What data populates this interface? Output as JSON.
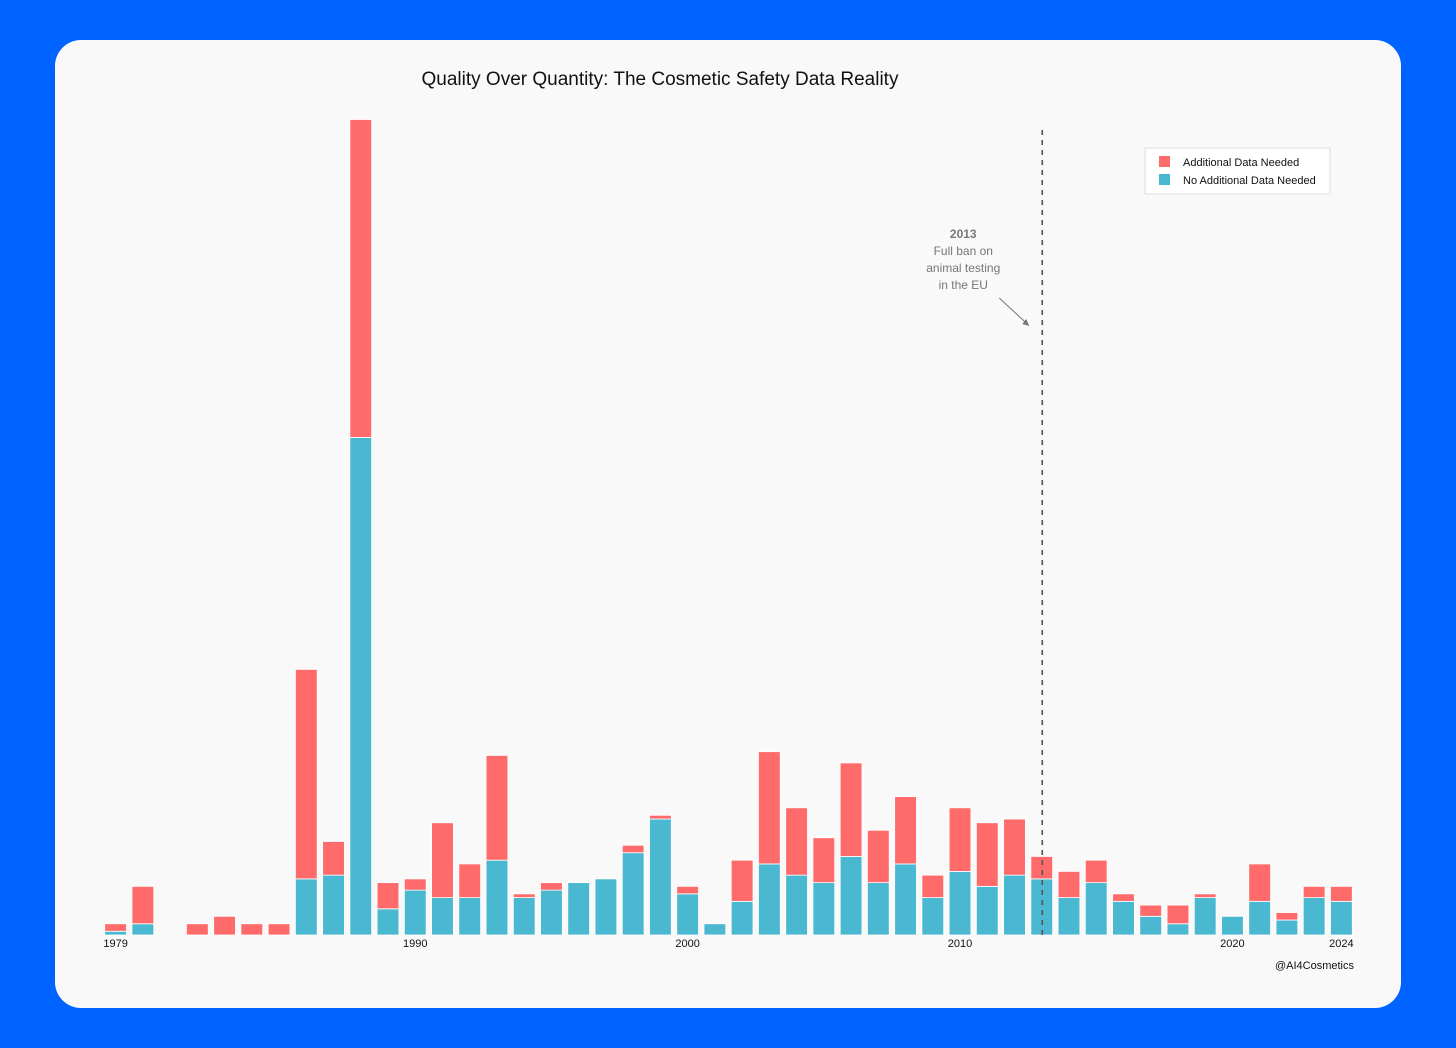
{
  "chart_data": {
    "type": "bar",
    "stacked": true,
    "title": "Quality Over Quantity: The Cosmetic Safety Data Reality",
    "xlabel": "",
    "ylabel": "",
    "ylim": [
      0,
      110
    ],
    "grid": false,
    "legend_position": "top-right",
    "x": [
      1979,
      1980,
      1981,
      1982,
      1983,
      1984,
      1985,
      1986,
      1987,
      1988,
      1989,
      1990,
      1991,
      1992,
      1993,
      1994,
      1995,
      1996,
      1997,
      1998,
      1999,
      2000,
      2001,
      2002,
      2003,
      2004,
      2005,
      2006,
      2007,
      2008,
      2009,
      2010,
      2011,
      2012,
      2013,
      2014,
      2015,
      2016,
      2017,
      2018,
      2019,
      2020,
      2021,
      2022,
      2023,
      2024
    ],
    "x_tick_labels": [
      "1979",
      "1990",
      "2000",
      "2010",
      "2020",
      "2024"
    ],
    "series": [
      {
        "name": "No Additional Data Needed",
        "color": "#4bb8d1",
        "values": [
          0.5,
          1.5,
          0,
          0,
          0,
          0,
          0,
          7.5,
          8,
          66.5,
          3.5,
          6,
          5,
          5,
          10,
          5,
          6,
          7,
          7.5,
          11,
          15.5,
          5.5,
          1.5,
          4.5,
          9.5,
          8,
          7,
          10.5,
          7,
          9.5,
          5,
          8.5,
          6.5,
          8,
          7.5,
          5,
          7,
          4.5,
          2.5,
          1.5,
          5,
          2.5,
          4.5,
          2,
          5,
          4.5
        ]
      },
      {
        "name": "Additional Data Needed",
        "color": "#ff6b6b",
        "values": [
          1,
          5,
          0,
          1.5,
          2.5,
          1.5,
          1.5,
          28,
          4.5,
          42.5,
          3.5,
          1.5,
          10,
          4.5,
          14,
          0.5,
          1,
          0,
          0,
          1,
          0.5,
          1,
          0,
          5.5,
          15,
          9,
          6,
          12.5,
          7,
          9,
          3,
          8.5,
          8.5,
          7.5,
          3,
          3.5,
          3,
          1,
          1.5,
          2.5,
          0.5,
          0,
          5,
          1,
          1.5,
          2
        ]
      }
    ],
    "annotation": {
      "x": 2013,
      "year": "2013",
      "lines": [
        "Full ban on",
        "animal testing",
        "in the EU"
      ]
    },
    "credit": "@AI4Cosmetics"
  }
}
